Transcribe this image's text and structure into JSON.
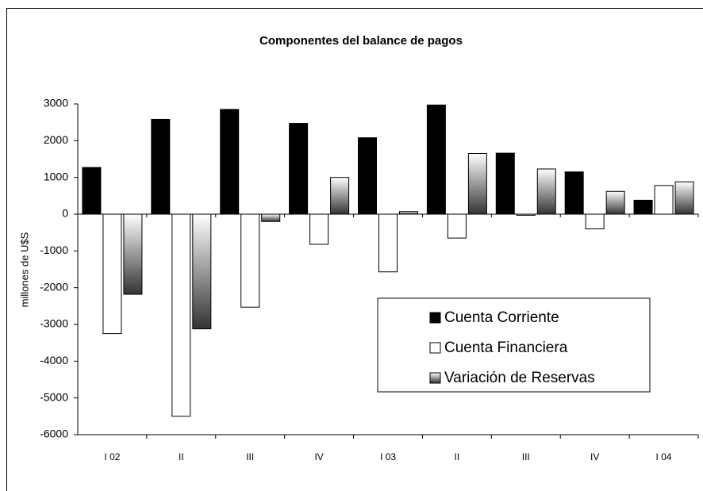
{
  "chart_data": {
    "type": "bar",
    "title": "Componentes del balance de pagos",
    "y_label": "millones de U$S",
    "categories": [
      "I 02",
      "II",
      "III",
      "IV",
      "I 03",
      "II",
      "III",
      "IV",
      "I 04"
    ],
    "series": [
      {
        "name": "Cuenta Corriente",
        "color": "#000000",
        "values": [
          1270,
          2580,
          2850,
          2470,
          2080,
          2970,
          1660,
          1150,
          380
        ]
      },
      {
        "name": "Cuenta Financiera",
        "color": "#ffffff",
        "values": [
          -3250,
          -5500,
          -2530,
          -820,
          -1570,
          -650,
          -30,
          -400,
          780
        ]
      },
      {
        "name": "Variación de Reservas",
        "color": "#333333",
        "gradient": true,
        "values": [
          -2180,
          -3120,
          -200,
          1000,
          70,
          1650,
          1230,
          620,
          880
        ]
      }
    ],
    "ylim": [
      -6000,
      3000
    ],
    "yticks": [
      -6000,
      -5000,
      -4000,
      -3000,
      -2000,
      -1000,
      0,
      1000,
      2000,
      3000
    ],
    "grid": false,
    "legend": "lower right"
  }
}
